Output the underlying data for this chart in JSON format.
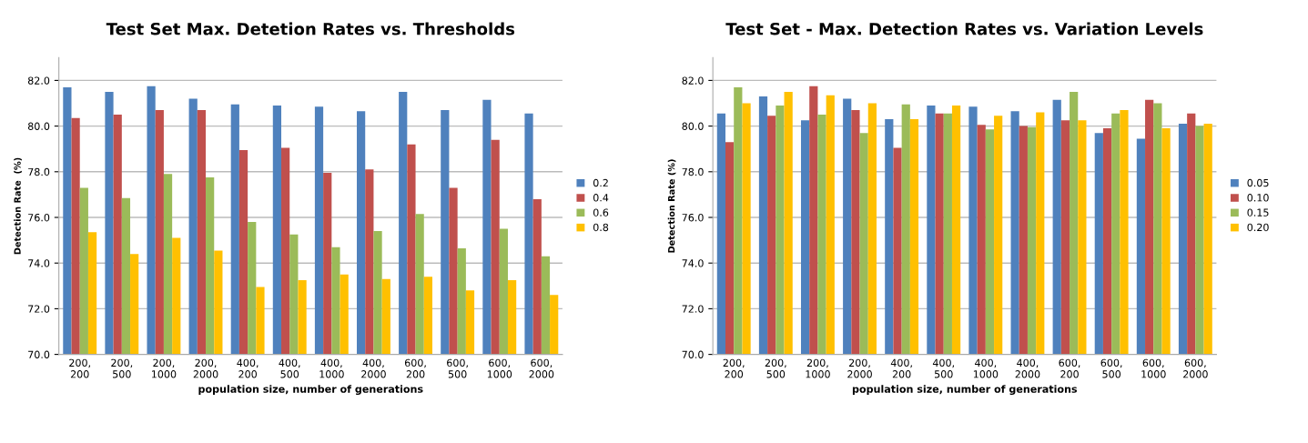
{
  "chart_data": [
    {
      "type": "bar",
      "title": "Test Set Max. Detetion Rates vs. Thresholds",
      "xlabel": "population size, number of generations",
      "ylabel": "Detection Rate  (%)",
      "categories": [
        "200,\n200",
        "200,\n500",
        "200,\n1000",
        "200,\n2000",
        "400,\n200",
        "400,\n500",
        "400,\n1000",
        "400,\n2000",
        "600,\n200",
        "600,\n500",
        "600,\n1000",
        "600,\n2000"
      ],
      "series": [
        {
          "name": "0.2",
          "color": "#4f81bd",
          "values": [
            81.7,
            81.5,
            81.75,
            81.2,
            80.95,
            80.9,
            80.85,
            80.65,
            81.5,
            80.7,
            81.15,
            80.55
          ]
        },
        {
          "name": "0.4",
          "color": "#c0504d",
          "values": [
            80.35,
            80.5,
            80.7,
            80.7,
            78.95,
            79.05,
            77.95,
            78.1,
            79.2,
            77.3,
            79.4,
            76.8
          ]
        },
        {
          "name": "0.6",
          "color": "#9bbb59",
          "values": [
            77.3,
            76.85,
            77.9,
            77.75,
            75.8,
            75.25,
            74.7,
            75.4,
            76.15,
            74.65,
            75.5,
            74.3
          ]
        },
        {
          "name": "0.8",
          "color": "#ffc000",
          "values": [
            75.35,
            74.4,
            75.1,
            74.55,
            72.95,
            73.25,
            73.5,
            73.3,
            73.4,
            72.8,
            73.25,
            72.6
          ]
        }
      ],
      "ylim": [
        70,
        83
      ],
      "yticks": [
        {
          "value": 70,
          "label": "70.0"
        },
        {
          "value": 72,
          "label": "72.0"
        },
        {
          "value": 74,
          "label": "74.0"
        },
        {
          "value": 76,
          "label": "76.0"
        },
        {
          "value": 78,
          "label": "78.0"
        },
        {
          "value": 80,
          "label": "80.0"
        },
        {
          "value": 82,
          "label": "82.0"
        }
      ],
      "grid": "y",
      "legend": "right"
    },
    {
      "type": "bar",
      "title": "Test Set - Max. Detection Rates vs. Variation Levels",
      "xlabel": "population size, number of generations",
      "ylabel": "Detection Rate (%)",
      "categories": [
        "200,\n200",
        "200,\n500",
        "200,\n1000",
        "200,\n2000",
        "400,\n200",
        "400,\n500",
        "400,\n1000",
        "400,\n2000",
        "600,\n200",
        "600,\n500",
        "600,\n1000",
        "600,\n2000"
      ],
      "series": [
        {
          "name": "0.05",
          "color": "#4f81bd",
          "values": [
            80.55,
            81.3,
            80.25,
            81.2,
            80.3,
            80.9,
            80.85,
            80.65,
            81.15,
            79.7,
            79.45,
            80.1
          ]
        },
        {
          "name": "0.10",
          "color": "#c0504d",
          "values": [
            79.3,
            80.45,
            81.75,
            80.7,
            79.05,
            80.55,
            80.05,
            80.0,
            80.25,
            79.9,
            81.15,
            80.55
          ]
        },
        {
          "name": "0.15",
          "color": "#9bbb59",
          "values": [
            81.7,
            80.9,
            80.5,
            79.7,
            80.95,
            80.55,
            79.85,
            79.95,
            81.5,
            80.55,
            81.0,
            80.0
          ]
        },
        {
          "name": "0.20",
          "color": "#ffc000",
          "values": [
            81.0,
            81.5,
            81.35,
            81.0,
            80.3,
            80.9,
            80.45,
            80.6,
            80.25,
            80.7,
            79.9,
            80.1
          ]
        }
      ],
      "ylim": [
        70,
        83
      ],
      "yticks": [
        {
          "value": 70,
          "label": "70.0"
        },
        {
          "value": 72,
          "label": "72.0"
        },
        {
          "value": 74,
          "label": "74.0"
        },
        {
          "value": 76,
          "label": "76.0"
        },
        {
          "value": 78,
          "label": "78.0"
        },
        {
          "value": 80,
          "label": "80.0"
        },
        {
          "value": 82,
          "label": "82.0"
        }
      ],
      "grid": "y",
      "legend": "right"
    }
  ]
}
